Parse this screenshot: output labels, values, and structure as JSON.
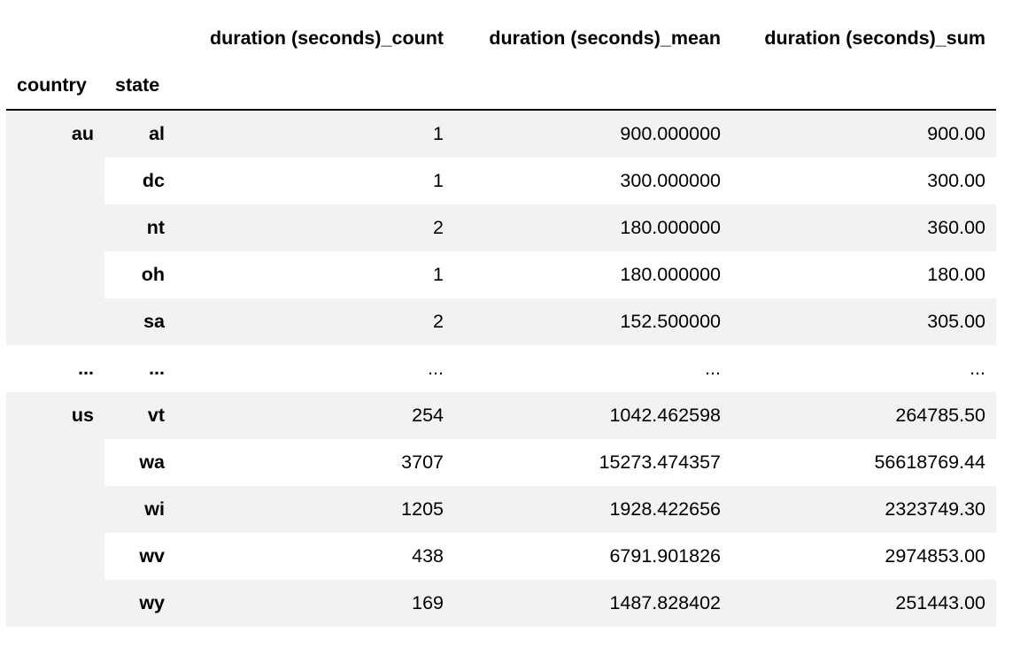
{
  "table": {
    "columns": [
      "duration (seconds)_count",
      "duration (seconds)_mean",
      "duration (seconds)_sum"
    ],
    "index_names": [
      "country",
      "state"
    ],
    "groups": [
      {
        "country": "au",
        "rows": [
          {
            "state": "al",
            "count": "1",
            "mean": "900.000000",
            "sum": "900.00"
          },
          {
            "state": "dc",
            "count": "1",
            "mean": "300.000000",
            "sum": "300.00"
          },
          {
            "state": "nt",
            "count": "2",
            "mean": "180.000000",
            "sum": "360.00"
          },
          {
            "state": "oh",
            "count": "1",
            "mean": "180.000000",
            "sum": "180.00"
          },
          {
            "state": "sa",
            "count": "2",
            "mean": "152.500000",
            "sum": "305.00"
          }
        ]
      },
      {
        "country": "us",
        "rows": [
          {
            "state": "vt",
            "count": "254",
            "mean": "1042.462598",
            "sum": "264785.50"
          },
          {
            "state": "wa",
            "count": "3707",
            "mean": "15273.474357",
            "sum": "56618769.44"
          },
          {
            "state": "wi",
            "count": "1205",
            "mean": "1928.422656",
            "sum": "2323749.30"
          },
          {
            "state": "wv",
            "count": "438",
            "mean": "6791.901826",
            "sum": "2974853.00"
          },
          {
            "state": "wy",
            "count": "169",
            "mean": "1487.828402",
            "sum": "251443.00"
          }
        ]
      }
    ],
    "ellipsis": {
      "country": "...",
      "state": "...",
      "count": "...",
      "mean": "...",
      "sum": "..."
    }
  }
}
